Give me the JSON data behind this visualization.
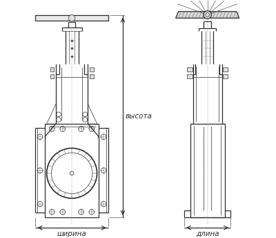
{
  "bg_color": "#ffffff",
  "lc": "#2a2a2a",
  "lc2": "#555555",
  "lc3": "#999999",
  "label_width": "ширина",
  "label_height": "высота",
  "label_length": "длина",
  "figsize": [
    4.0,
    3.46
  ],
  "dpi": 100
}
